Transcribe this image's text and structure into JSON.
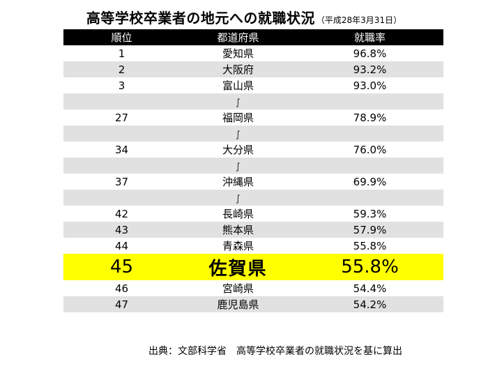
{
  "title": {
    "main": "高等学校卒業者の地元への就職状況",
    "note": "（平成28年3月31日）"
  },
  "table": {
    "headers": [
      "順位",
      "都道府県",
      "就職率"
    ],
    "rows": [
      {
        "type": "data",
        "rank": "1",
        "prefecture": "愛知県",
        "rate": "96.8%"
      },
      {
        "type": "data",
        "rank": "2",
        "prefecture": "大阪府",
        "rate": "93.2%"
      },
      {
        "type": "data",
        "rank": "3",
        "prefecture": "富山県",
        "rate": "93.0%"
      },
      {
        "type": "gap",
        "symbol": "∫"
      },
      {
        "type": "data",
        "rank": "27",
        "prefecture": "福岡県",
        "rate": "78.9%"
      },
      {
        "type": "gap",
        "symbol": "∫"
      },
      {
        "type": "data",
        "rank": "34",
        "prefecture": "大分県",
        "rate": "76.0%"
      },
      {
        "type": "gap",
        "symbol": "∫"
      },
      {
        "type": "data",
        "rank": "37",
        "prefecture": "沖縄県",
        "rate": "69.9%"
      },
      {
        "type": "gap",
        "symbol": "∫"
      },
      {
        "type": "data",
        "rank": "42",
        "prefecture": "長崎県",
        "rate": "59.3%"
      },
      {
        "type": "data",
        "rank": "43",
        "prefecture": "熊本県",
        "rate": "57.9%"
      },
      {
        "type": "data",
        "rank": "44",
        "prefecture": "青森県",
        "rate": "55.8%"
      },
      {
        "type": "highlight",
        "rank": "45",
        "prefecture": "佐賀県",
        "rate": "55.8%"
      },
      {
        "type": "data",
        "rank": "46",
        "prefecture": "宮崎県",
        "rate": "54.4%"
      },
      {
        "type": "data",
        "rank": "47",
        "prefecture": "鹿児島県",
        "rate": "54.2%"
      }
    ]
  },
  "source": "出典：文部科学省　高等学校卒業者の就職状況を基に算出",
  "colors": {
    "header_bg": "#000000",
    "header_text": "#ffffff",
    "stripe": "#e1e1e1",
    "highlight": "#ffff00"
  }
}
